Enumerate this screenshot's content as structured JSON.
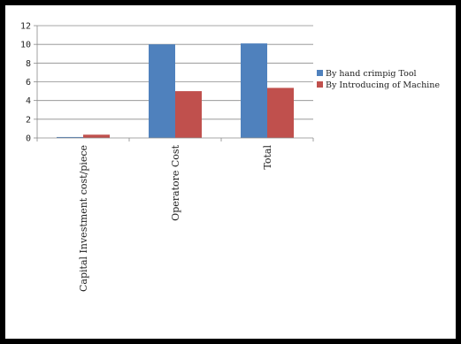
{
  "chart_data": {
    "type": "bar",
    "categories": [
      "Capital Investment cost/piece",
      "Operatore Cost",
      "Total"
    ],
    "series": [
      {
        "name": "By hand crimpig Tool",
        "values": [
          0.1,
          10,
          10.1
        ],
        "color": "#4f81bd"
      },
      {
        "name": "By Introducing of Machine",
        "values": [
          0.35,
          5,
          5.35
        ],
        "color": "#c0504d"
      }
    ],
    "yticks": [
      0,
      2,
      4,
      6,
      8,
      10,
      12
    ],
    "ylim": [
      0,
      12
    ],
    "grid": true,
    "legend_position": "right",
    "title": "",
    "xlabel": "",
    "ylabel": ""
  }
}
